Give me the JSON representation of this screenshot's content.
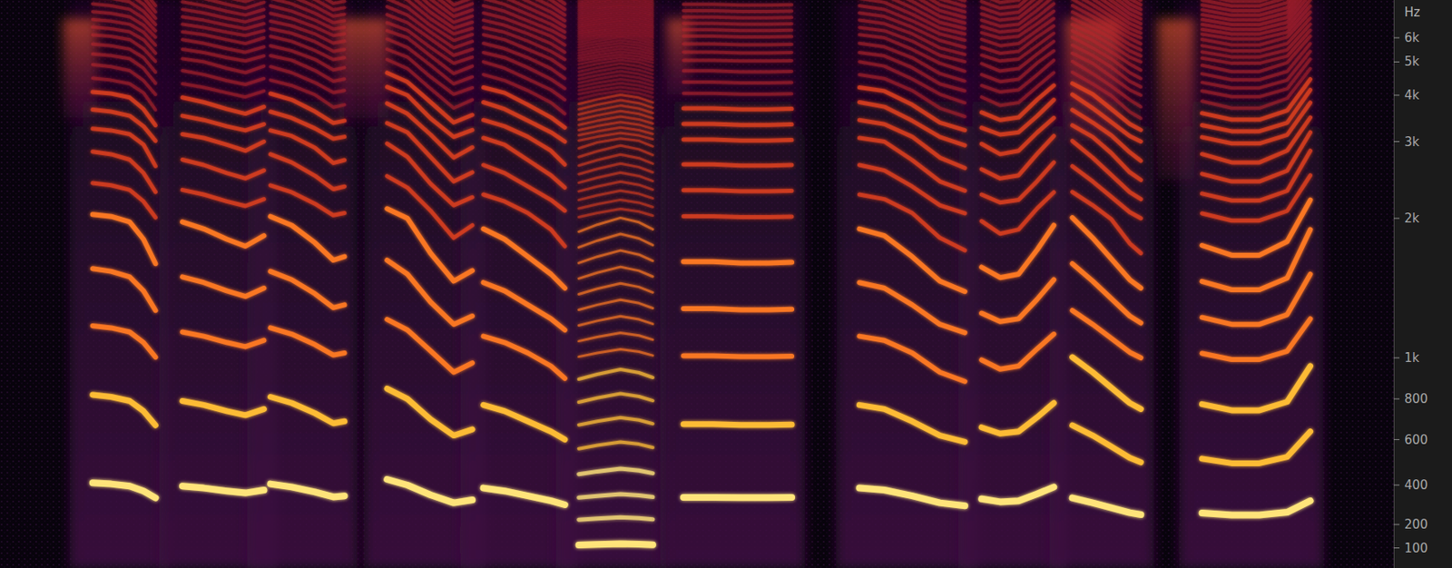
{
  "chart_data": {
    "type": "spectrogram",
    "y_label": "Hz",
    "xlim": [
      0,
      3010
    ],
    "ylim": [
      0,
      8000
    ],
    "yticks": [
      100,
      200,
      400,
      600,
      800,
      {
        "value": 1000,
        "label": "1k"
      },
      {
        "value": 2000,
        "label": "2k"
      },
      {
        "value": 3000,
        "label": "3k"
      },
      {
        "value": 4000,
        "label": "4k"
      },
      {
        "value": 5000,
        "label": "5k"
      },
      {
        "value": 6000,
        "label": "6k"
      }
    ],
    "grid": false,
    "tick_labels": "y",
    "series": [
      {
        "x": [
          200,
          240,
          280,
          310,
          336
        ],
        "values": [
          410,
          405,
          395,
          370,
          335
        ]
      },
      {
        "x": [
          394,
          440,
          490,
          530,
          570
        ],
        "values": [
          395,
          385,
          370,
          360,
          375
        ]
      },
      {
        "x": [
          584,
          630,
          680,
          720,
          744
        ],
        "values": [
          405,
          390,
          365,
          340,
          345
        ]
      },
      {
        "x": [
          836,
          880,
          930,
          980,
          1020
        ],
        "values": [
          425,
          400,
          350,
          310,
          325
        ]
      },
      {
        "x": [
          1044,
          1090,
          1140,
          1190,
          1220
        ],
        "values": [
          385,
          370,
          345,
          320,
          300
        ]
      },
      {
        "x": [
          1250,
          1290,
          1340,
          1380,
          1410
        ],
        "values": [
          112,
          115,
          118,
          116,
          113
        ]
      },
      {
        "x": [
          1476,
          1540,
          1600,
          1660,
          1710
        ],
        "values": [
          338,
          338,
          336,
          336,
          337
        ]
      },
      {
        "x": [
          1856,
          1910,
          1970,
          2030,
          2084
        ],
        "values": [
          385,
          375,
          345,
          310,
          295
        ]
      },
      {
        "x": [
          2120,
          2160,
          2200,
          2240,
          2276
        ],
        "values": [
          330,
          315,
          320,
          355,
          390
        ]
      },
      {
        "x": [
          2316,
          2360,
          2400,
          2440,
          2464
        ],
        "values": [
          335,
          310,
          285,
          260,
          250
        ]
      },
      {
        "x": [
          2596,
          2660,
          2720,
          2780,
          2830
        ],
        "values": [
          258,
          248,
          248,
          262,
          320
        ]
      }
    ],
    "noise": [
      {
        "start": 136,
        "end": 210,
        "low": 3500,
        "high": 7000
      },
      {
        "start": 730,
        "end": 840,
        "low": 3500,
        "high": 7000
      },
      {
        "start": 1440,
        "end": 1490,
        "low": 4000,
        "high": 7000
      },
      {
        "start": 2300,
        "end": 2420,
        "low": 3000,
        "high": 7000
      },
      {
        "start": 2500,
        "end": 2580,
        "low": 2500,
        "high": 7000
      }
    ]
  }
}
